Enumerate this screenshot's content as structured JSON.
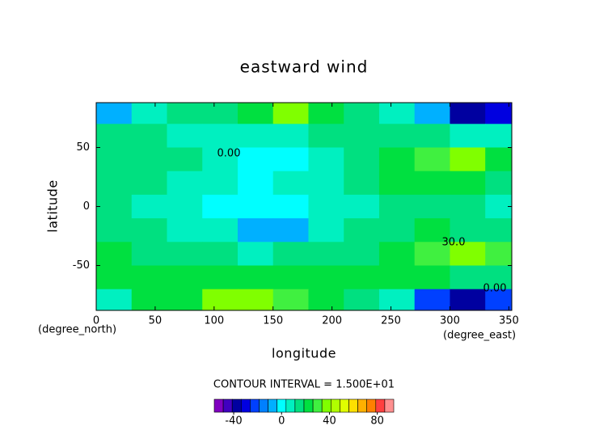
{
  "chart_data": {
    "type": "contour",
    "title": "eastward wind",
    "xlabel": "longitude",
    "ylabel": "latitude",
    "xlabel_units": "(degree_east)",
    "ylabel_units": "(degree_north)",
    "xlim": [
      0,
      352.5
    ],
    "ylim": [
      -88,
      88
    ],
    "xticks": [
      0,
      50,
      100,
      150,
      200,
      250,
      300,
      350
    ],
    "yticks": [
      -50,
      0,
      50
    ],
    "x": [
      15,
      45,
      75,
      105,
      135,
      165,
      195,
      225,
      255,
      285,
      315,
      345
    ],
    "y": [
      80,
      60,
      40,
      20,
      0,
      -20,
      -40,
      -60,
      -80
    ],
    "z": [
      [
        -5,
        10,
        15,
        15,
        20,
        35,
        20,
        15,
        10,
        -10,
        -35,
        -30
      ],
      [
        15,
        15,
        10,
        10,
        8,
        10,
        12,
        12,
        15,
        15,
        5,
        5
      ],
      [
        15,
        18,
        15,
        5,
        -2,
        -3,
        10,
        15,
        20,
        30,
        35,
        25
      ],
      [
        15,
        12,
        10,
        5,
        0,
        5,
        10,
        12,
        20,
        22,
        20,
        18
      ],
      [
        12,
        10,
        8,
        3,
        -2,
        3,
        8,
        10,
        15,
        18,
        15,
        10
      ],
      [
        18,
        15,
        10,
        5,
        -5,
        -5,
        8,
        12,
        18,
        20,
        18,
        15
      ],
      [
        20,
        18,
        15,
        12,
        10,
        12,
        15,
        15,
        20,
        30,
        35,
        28
      ],
      [
        20,
        22,
        20,
        20,
        20,
        20,
        22,
        22,
        20,
        25,
        18,
        15
      ],
      [
        10,
        20,
        25,
        35,
        40,
        30,
        20,
        15,
        5,
        -20,
        -35,
        -20
      ]
    ],
    "contour_labels": [
      "0.00",
      "30.0",
      "0.00"
    ],
    "contour_interval_text": "CONTOUR INTERVAL = 1.500E+01",
    "colorbar": {
      "lim": [
        -56.25,
        93.75
      ],
      "ticks": [
        -40,
        0,
        40,
        80
      ],
      "colors": [
        "#8000c0",
        "#4000c0",
        "#0000a0",
        "#0000e0",
        "#0040ff",
        "#0080ff",
        "#00b0ff",
        "#00ffff",
        "#00f0c0",
        "#00e080",
        "#00e040",
        "#40f040",
        "#80ff00",
        "#b0ff00",
        "#e0ff00",
        "#ffe000",
        "#ffb000",
        "#ff8000",
        "#ff4040",
        "#ff9090"
      ]
    }
  }
}
